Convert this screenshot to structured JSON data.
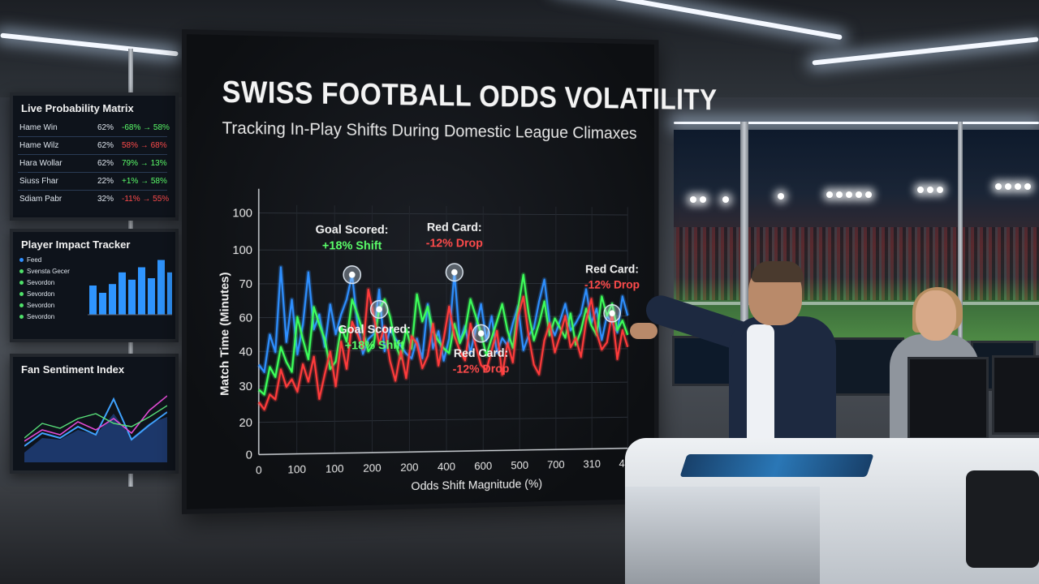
{
  "main_screen": {
    "title": "SWISS FOOTBALL ODDS VOLATILITY",
    "subtitle": "Tracking In-Play Shifts During Domestic League Climaxes",
    "annotations": [
      {
        "label": "Goal Scored:",
        "value": "+18% Shift",
        "color": "#5bff6a"
      },
      {
        "label": "Red Card:",
        "value": "-12% Drop",
        "color": "#ff4b4b"
      },
      {
        "label": "Red Card:",
        "value": "-12% Drop",
        "color": "#ff4b4b"
      },
      {
        "label": "Goal Scored:",
        "value": "+18% Shift",
        "color": "#5bff6a"
      },
      {
        "label": "Red Card:",
        "value": "-12% Drop",
        "color": "#ff4b4b"
      }
    ]
  },
  "chart_data": {
    "type": "line",
    "ylabel": "Match Time (Minutes)",
    "xlabel": "Odds Shift Magnitude (%)",
    "y_ticks": [
      "0",
      "20",
      "30",
      "40",
      "60",
      "70",
      "100",
      "100"
    ],
    "x_ticks": [
      "0",
      "100",
      "100",
      "200",
      "200",
      "400",
      "600",
      "500",
      "700",
      "310",
      "400"
    ],
    "grid": true,
    "series": [
      {
        "color": "#2e8fff",
        "values": [
          36,
          33,
          48,
          41,
          75,
          45,
          62,
          40,
          52,
          73,
          50,
          56,
          43,
          60,
          48,
          56,
          62,
          72,
          52,
          40,
          46,
          48,
          66,
          41,
          50,
          46,
          43,
          40,
          38,
          46,
          38,
          60,
          42,
          49,
          37,
          46,
          73,
          45,
          51,
          40,
          50,
          60,
          45,
          55,
          40,
          46,
          43,
          52,
          59,
          41,
          47,
          50,
          61,
          70,
          52,
          47,
          53,
          60,
          49,
          52,
          56,
          66,
          52,
          58,
          45,
          55,
          52,
          48,
          63,
          55
        ]
      },
      {
        "color": "#3dff5a",
        "values": [
          26,
          24,
          35,
          31,
          43,
          37,
          33,
          55,
          46,
          38,
          59,
          52,
          46,
          34,
          37,
          51,
          45,
          62,
          56,
          49,
          41,
          44,
          58,
          62,
          55,
          44,
          38,
          50,
          42,
          64,
          53,
          59,
          49,
          45,
          42,
          40,
          52,
          44,
          49,
          62,
          55,
          48,
          39,
          46,
          53,
          60,
          49,
          42,
          58,
          72,
          56,
          45,
          52,
          61,
          47,
          54,
          50,
          46,
          56,
          43,
          49,
          58,
          51,
          47,
          63,
          55,
          60,
          49,
          53,
          47
        ]
      },
      {
        "color": "#ff3b3b",
        "values": [
          21,
          18,
          24,
          22,
          34,
          27,
          30,
          25,
          36,
          29,
          39,
          22,
          32,
          41,
          27,
          45,
          34,
          53,
          48,
          42,
          66,
          55,
          44,
          51,
          37,
          29,
          41,
          30,
          47,
          44,
          34,
          39,
          52,
          35,
          46,
          59,
          47,
          41,
          37,
          52,
          43,
          35,
          33,
          41,
          49,
          31,
          44,
          36,
          55,
          63,
          47,
          35,
          31,
          45,
          52,
          40,
          47,
          55,
          42,
          46,
          38,
          53,
          62,
          48,
          41,
          44,
          56,
          37,
          49,
          42
        ]
      }
    ],
    "markers": [
      {
        "series": 0,
        "point_index": 17
      },
      {
        "series": 0,
        "point_index": 36
      },
      {
        "series": 2,
        "point_index": 66
      },
      {
        "series": 1,
        "point_index": 22
      },
      {
        "series": 1,
        "point_index": 41
      }
    ]
  },
  "side_panels": {
    "probability_matrix": {
      "title": "Live Probability Matrix",
      "rows": [
        {
          "label": "Hame Win",
          "value": "62%",
          "shift": "-68% → 58%",
          "color": "#5bff6a"
        },
        {
          "label": "Hame Wilz",
          "value": "62%",
          "shift": "58% → 68%",
          "color": "#ff4b4b"
        },
        {
          "label": "Hara Wollar",
          "value": "62%",
          "shift": "79% → 13%",
          "color": "#5bff6a"
        },
        {
          "label": "Siuss Fhar",
          "value": "22%",
          "shift": "+1% → 58%",
          "color": "#5bff6a"
        },
        {
          "label": "Sdiam Pabr",
          "value": "32%",
          "shift": "-11% → 55%",
          "color": "#ff4b4b"
        }
      ]
    },
    "impact_tracker": {
      "title": "Player Impact Tracker",
      "rows": [
        "Feed",
        "Svensta Gecer",
        "Sevordon",
        "Sevordon",
        "Sevordon",
        "Sevordon"
      ],
      "bars": [
        40,
        30,
        42,
        58,
        48,
        65,
        50,
        75,
        58
      ]
    },
    "sentiment": {
      "title": "Fan Sentiment Index"
    }
  }
}
